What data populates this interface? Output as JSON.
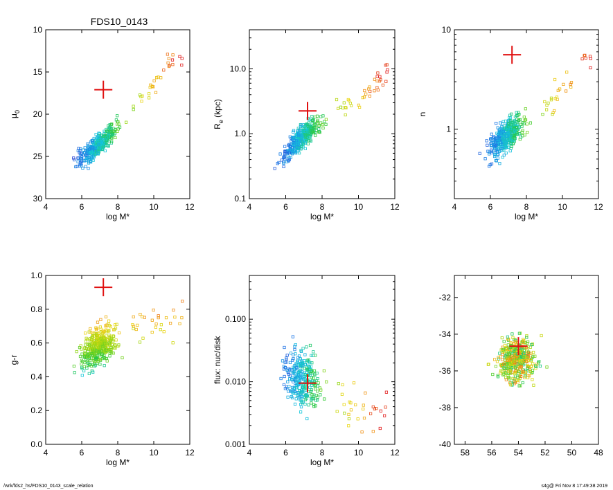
{
  "figure": {
    "title": "FDS10_0143",
    "footer_left": "/wrk/fds2_hs/FDS10_0143_scale_relation",
    "footer_right": "s4g@  Fri Nov  8 17:49:38 2019"
  },
  "chart_data": [
    {
      "id": "p1",
      "type": "scatter",
      "xlabel": "log M*",
      "ylabel": "μ0",
      "ylabel_main": "μ",
      "ylabel_sub": "0",
      "xlim": [
        4,
        12
      ],
      "ylim": [
        30,
        10
      ],
      "yreverse": true,
      "ylog": false,
      "xticks": [
        4,
        6,
        8,
        10,
        12
      ],
      "yticks": [
        10,
        15,
        20,
        25,
        30
      ],
      "cloud": {
        "seed": 11,
        "n": 420,
        "mode": "mu",
        "anchors": [
          [
            5.5,
            25.3
          ],
          [
            6.5,
            24.5
          ],
          [
            7.5,
            22.5
          ],
          [
            8.5,
            20.5
          ],
          [
            10,
            16.5
          ],
          [
            11,
            13.5
          ]
        ],
        "scatter": 1.2
      },
      "marker": {
        "x": 7.2,
        "y": 17.1
      }
    },
    {
      "id": "p2",
      "type": "scatter",
      "xlabel": "log M*",
      "ylabel": "Re (kpc)",
      "ylabel_main": "R",
      "ylabel_sub": "e",
      "ylabel_tail": " (kpc)",
      "xlim": [
        4,
        12
      ],
      "ylim": [
        0.1,
        40
      ],
      "ylog": true,
      "xticks": [
        4,
        6,
        8,
        10,
        12
      ],
      "yticks": [
        0.1,
        1.0,
        10.0
      ],
      "yticklabels": [
        "0.1",
        "1.0",
        "10.0"
      ],
      "cloud": {
        "seed": 23,
        "n": 420,
        "mode": "re",
        "anchors": [
          [
            5.5,
            -0.45
          ],
          [
            6.5,
            -0.15
          ],
          [
            7.5,
            0.1
          ],
          [
            8.5,
            0.3
          ],
          [
            10,
            0.55
          ],
          [
            11.5,
            0.95
          ]
        ],
        "scatter": 0.17
      },
      "marker": {
        "x": 7.2,
        "y": 2.25
      }
    },
    {
      "id": "p3",
      "type": "scatter",
      "xlabel": "log M*",
      "ylabel": "n",
      "xlim": [
        4,
        12
      ],
      "ylim": [
        0.2,
        10
      ],
      "ylog": true,
      "xticks": [
        4,
        6,
        8,
        10,
        12
      ],
      "yticks": [
        1,
        10
      ],
      "yticklabels": [
        "1",
        "10"
      ],
      "cloud": {
        "seed": 37,
        "n": 420,
        "mode": "n",
        "anchors": [
          [
            5.5,
            -0.25
          ],
          [
            6.5,
            -0.12
          ],
          [
            7.5,
            0.02
          ],
          [
            8.5,
            0.12
          ],
          [
            10,
            0.4
          ],
          [
            11.5,
            0.75
          ]
        ],
        "scatter": 0.15
      },
      "marker": {
        "x": 7.2,
        "y": 5.6
      }
    },
    {
      "id": "p4",
      "type": "scatter",
      "xlabel": "log M*",
      "ylabel": "g-r",
      "xlim": [
        4,
        12
      ],
      "ylim": [
        0.0,
        1.0
      ],
      "ylog": false,
      "xticks": [
        4,
        6,
        8,
        10,
        12
      ],
      "yticks": [
        0.0,
        0.2,
        0.4,
        0.6,
        0.8,
        1.0
      ],
      "yticklabels": [
        "0.0",
        "0.2",
        "0.4",
        "0.6",
        "0.8",
        "1.0"
      ],
      "cloud": {
        "seed": 51,
        "n": 420,
        "mode": "gr",
        "anchors": [
          [
            5.5,
            0.5
          ],
          [
            6.5,
            0.55
          ],
          [
            7.5,
            0.6
          ],
          [
            8.5,
            0.65
          ],
          [
            10,
            0.72
          ],
          [
            11.5,
            0.78
          ]
        ],
        "scatter": 0.11
      },
      "marker": {
        "x": 7.2,
        "y": 0.93
      }
    },
    {
      "id": "p5",
      "type": "scatter",
      "xlabel": "log M*",
      "ylabel": "flux: nuc/disk",
      "xlim": [
        4,
        12
      ],
      "ylim": [
        0.001,
        0.5
      ],
      "ylog": true,
      "xticks": [
        4,
        6,
        8,
        10,
        12
      ],
      "yticks": [
        0.001,
        0.01,
        0.1
      ],
      "yticklabels": [
        "0.001",
        "0.010",
        "0.100"
      ],
      "cloud": {
        "seed": 67,
        "n": 330,
        "mode": "flux",
        "anchors": [
          [
            5.5,
            -1.8
          ],
          [
            6.5,
            -1.9
          ],
          [
            7.5,
            -2.0
          ],
          [
            8.5,
            -2.2
          ],
          [
            10,
            -2.4
          ],
          [
            11.5,
            -2.6
          ]
        ],
        "scatter": 0.45
      },
      "marker": {
        "x": 7.2,
        "y": 0.0095
      }
    },
    {
      "id": "p6",
      "type": "scatter",
      "xlabel": "",
      "ylabel": "",
      "xlim": [
        58.8,
        48
      ],
      "ylim": [
        -40,
        -30.8
      ],
      "xreverse": true,
      "ylog": false,
      "xticks": [
        58,
        56,
        54,
        52,
        50,
        48
      ],
      "yticks": [
        -40,
        -38,
        -36,
        -34,
        -32
      ],
      "cloud": {
        "seed": 83,
        "n": 430,
        "mode": "sky",
        "center": [
          54.2,
          -35.4
        ],
        "scatter": 1.4
      },
      "marker": {
        "x": 54.0,
        "y": -34.65
      }
    }
  ]
}
